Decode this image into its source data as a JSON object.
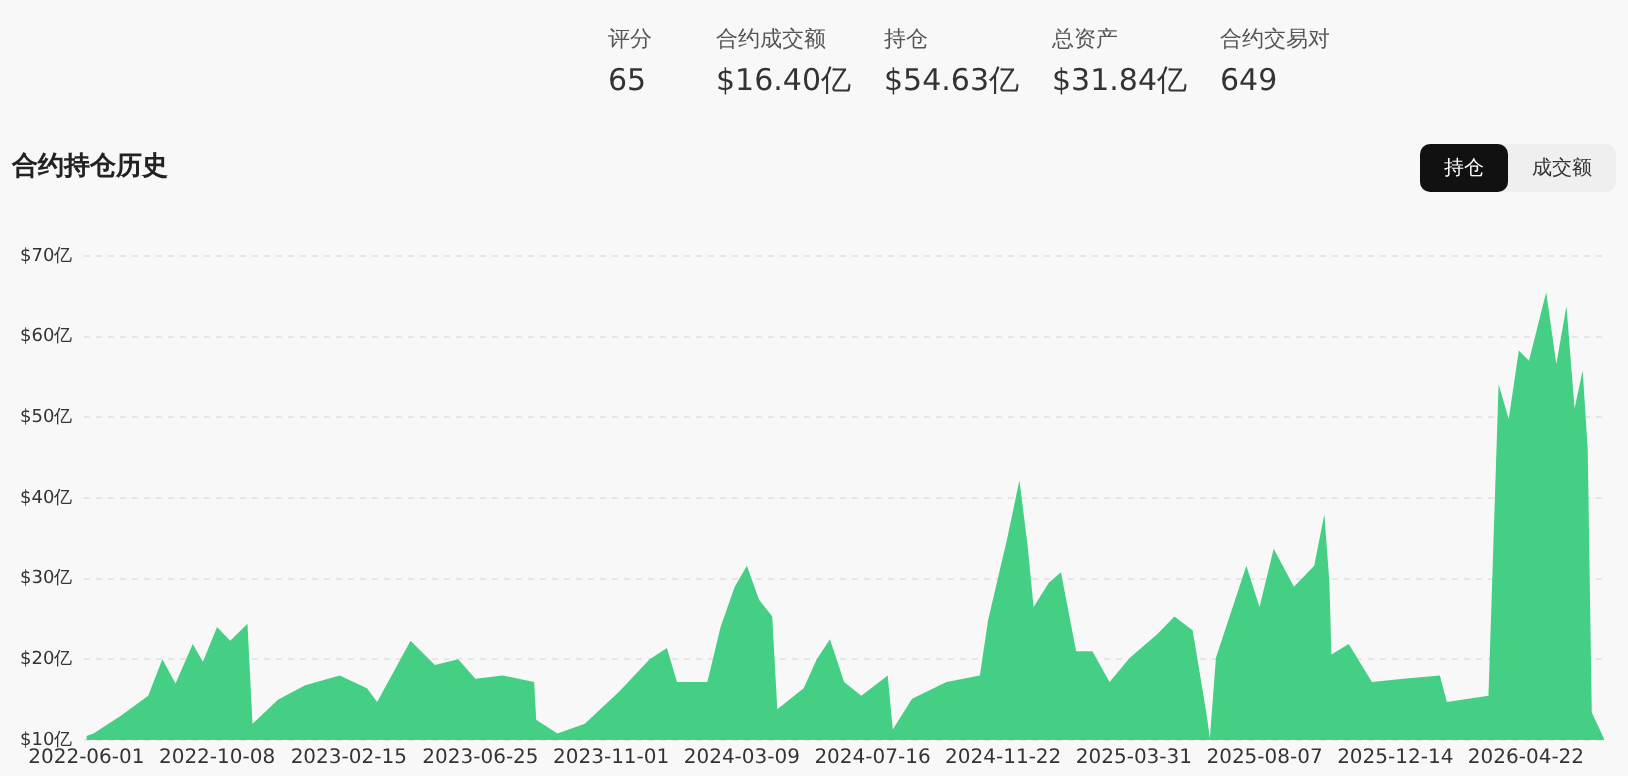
{
  "chart_data": {
    "type": "area",
    "title": "合约持仓历史",
    "annotations": [
      "评分",
      "65",
      "合约成交额",
      "$16.40亿",
      "持仓",
      "$54.63亿",
      "总资产",
      "$31.84亿",
      "合约交易对",
      "649",
      "持仓",
      "成交额"
    ],
    "x": [
      "2022-06-01",
      "2022-06-08",
      "2022-07-05",
      "2022-08-01",
      "2022-08-15",
      "2022-08-28",
      "2022-09-14",
      "2022-09-24",
      "2022-10-08",
      "2022-10-21",
      "2022-11-07",
      "2022-11-12",
      "2022-12-07",
      "2023-01-03",
      "2023-02-06",
      "2023-03-05",
      "2023-03-15",
      "2023-04-17",
      "2023-05-11",
      "2023-06-03",
      "2023-06-20",
      "2023-07-17",
      "2023-08-17",
      "2023-08-19",
      "2023-09-09",
      "2023-10-06",
      "2023-11-09",
      "2023-12-09",
      "2023-12-26",
      "2024-01-05",
      "2024-02-04",
      "2024-02-17",
      "2024-03-02",
      "2024-03-14",
      "2024-03-26",
      "2024-04-08",
      "2024-04-13",
      "2024-05-09",
      "2024-05-22",
      "2024-06-04",
      "2024-06-18",
      "2024-07-05",
      "2024-07-31",
      "2024-08-05",
      "2024-08-24",
      "2024-09-27",
      "2024-10-30",
      "2024-11-07",
      "2024-11-26",
      "2024-12-08",
      "2024-12-16",
      "2024-12-22",
      "2025-01-06",
      "2025-01-18",
      "2025-02-02",
      "2025-02-18",
      "2025-03-07",
      "2025-03-27",
      "2025-04-23",
      "2025-05-10",
      "2025-05-28",
      "2025-06-11",
      "2025-06-14",
      "2025-06-20",
      "2025-07-20",
      "2025-08-02",
      "2025-08-16",
      "2025-09-05",
      "2025-09-25",
      "2025-10-05",
      "2025-10-10",
      "2025-10-12",
      "2025-10-29",
      "2025-11-21",
      "2025-12-22",
      "2026-01-27",
      "2026-02-03",
      "2026-03-16",
      "2026-03-26",
      "2026-04-05",
      "2026-04-15",
      "2026-04-25",
      "2026-05-12",
      "2026-05-22",
      "2026-06-01",
      "2026-06-09",
      "2026-06-17",
      "2026-06-22",
      "2026-06-26",
      "2026-07-08"
    ],
    "series": [
      {
        "color": "#45cf85",
        "values": [
          10.5,
          10.8,
          13,
          15.5,
          20,
          17,
          21.9,
          19.7,
          24,
          22.3,
          24.4,
          12,
          15,
          16.8,
          18,
          16.4,
          14.7,
          22.3,
          19.3,
          20,
          17.6,
          18,
          17.2,
          12.5,
          10.8,
          12,
          16,
          20,
          21.4,
          17.2,
          17.2,
          24,
          29,
          31.6,
          27.4,
          25.3,
          13.8,
          16.4,
          20,
          22.5,
          17.2,
          15.5,
          18,
          11.3,
          15.1,
          17.2,
          18,
          24.8,
          35,
          42.2,
          34.2,
          26.5,
          29.5,
          30.8,
          21,
          21,
          17.2,
          20.2,
          23.1,
          25.3,
          23.6,
          13,
          10.2,
          20.2,
          31.6,
          26.5,
          33.7,
          29,
          31.6,
          38,
          29.5,
          20.6,
          21.9,
          17.2,
          17.6,
          18,
          14.7,
          15.5,
          54.1,
          49.8,
          58.3,
          57,
          65.5,
          56.6,
          63.8,
          51.1,
          55.8,
          46,
          13.4,
          10.2
        ]
      }
    ],
    "xlim": [
      "2022-05-30",
      "2026-07-12"
    ],
    "xticks": [
      "2022-06-01",
      "2022-10-08",
      "2023-02-15",
      "2023-06-25",
      "2023-11-01",
      "2024-03-09",
      "2024-07-16",
      "2024-11-22",
      "2025-03-31",
      "2025-08-07",
      "2025-12-14",
      "2026-04-22"
    ],
    "ylim": [
      10,
      70
    ],
    "yticks": [
      {
        "value": 10,
        "label": "$10亿"
      },
      {
        "value": 20,
        "label": "$20亿"
      },
      {
        "value": 30,
        "label": "$30亿"
      },
      {
        "value": 40,
        "label": "$40亿"
      },
      {
        "value": 50,
        "label": "$50亿"
      },
      {
        "value": 60,
        "label": "$60亿"
      },
      {
        "value": 70,
        "label": "$70亿"
      }
    ],
    "grid": "y",
    "legend": false
  }
}
